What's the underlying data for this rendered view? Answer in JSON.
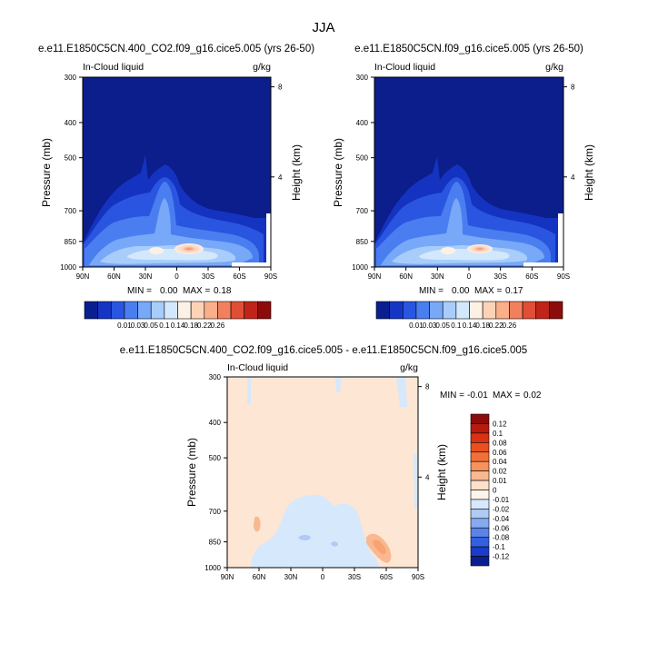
{
  "figure": {
    "title": "JJA"
  },
  "chart_data": [
    {
      "type": "heatmap",
      "title": "e.e11.E1850C5CN.400_CO2.f09_g16.cice5.005 (yrs 26-50)",
      "left_label": "In-Cloud liquid",
      "right_label": "g/kg",
      "xlabel": "",
      "ylabel": "Pressure (mb)",
      "y2label": "Height (km)",
      "x_ticks": [
        "90N",
        "60N",
        "30N",
        "0",
        "30S",
        "60S",
        "90S"
      ],
      "y_ticks": [
        300,
        400,
        500,
        700,
        850,
        1000
      ],
      "y2_ticks": [
        8,
        4
      ],
      "ylim": [
        1000,
        300
      ],
      "ylog": true,
      "stats": {
        "min_label": "MIN =",
        "min": "0.00",
        "max_label": "MAX =",
        "max": "0.18"
      },
      "colorbar": {
        "labels": [
          "0.01",
          "0.03",
          "0.05",
          "0.1",
          "0.14",
          "0.18",
          "0.22",
          "0.26"
        ],
        "colors": [
          "#0a1f8f",
          "#1535c4",
          "#2a55e0",
          "#4a7ef0",
          "#78a8f8",
          "#a8cdfb",
          "#d4e8fd",
          "#fdf0e4",
          "#fdd3b8",
          "#faae8a",
          "#f2805e",
          "#e04e36",
          "#c02418",
          "#8c0c0c"
        ]
      }
    },
    {
      "type": "heatmap",
      "title": "e.e11.E1850C5CN.f09_g16.cice5.005 (yrs 26-50)",
      "left_label": "In-Cloud liquid",
      "right_label": "g/kg",
      "xlabel": "",
      "ylabel": "Pressure (mb)",
      "y2label": "Height (km)",
      "x_ticks": [
        "90N",
        "60N",
        "30N",
        "0",
        "30S",
        "60S",
        "90S"
      ],
      "y_ticks": [
        300,
        400,
        500,
        700,
        850,
        1000
      ],
      "y2_ticks": [
        8,
        4
      ],
      "ylim": [
        1000,
        300
      ],
      "ylog": true,
      "stats": {
        "min_label": "MIN =",
        "min": "0.00",
        "max_label": "MAX =",
        "max": "0.17"
      },
      "colorbar": {
        "labels": [
          "0.01",
          "0.03",
          "0.05",
          "0.1",
          "0.14",
          "0.18",
          "0.22",
          "0.26"
        ],
        "colors": [
          "#0a1f8f",
          "#1535c4",
          "#2a55e0",
          "#4a7ef0",
          "#78a8f8",
          "#a8cdfb",
          "#d4e8fd",
          "#fdf0e4",
          "#fdd3b8",
          "#faae8a",
          "#f2805e",
          "#e04e36",
          "#c02418",
          "#8c0c0c"
        ]
      }
    },
    {
      "type": "heatmap",
      "title": "e.e11.E1850C5CN.400_CO2.f09_g16.cice5.005 - e.e11.E1850C5CN.f09_g16.cice5.005",
      "left_label": "In-Cloud liquid",
      "right_label": "g/kg",
      "xlabel": "",
      "ylabel": "Pressure (mb)",
      "y2label": "Height (km)",
      "x_ticks": [
        "90N",
        "60N",
        "30N",
        "0",
        "30S",
        "60S",
        "90S"
      ],
      "y_ticks": [
        300,
        400,
        500,
        700,
        850,
        1000
      ],
      "y2_ticks": [
        8,
        4
      ],
      "ylim": [
        1000,
        300
      ],
      "ylog": true,
      "stats": {
        "min_label": "MIN =",
        "min": "-0.01",
        "max_label": "MAX =",
        "max": "0.02"
      },
      "colorbar": {
        "orientation": "vertical",
        "labels": [
          "0.12",
          "0.1",
          "0.08",
          "0.06",
          "0.04",
          "0.02",
          "0.01",
          "0",
          "-0.01",
          "-0.02",
          "-0.04",
          "-0.06",
          "-0.08",
          "-0.1",
          "-0.12"
        ],
        "colors": [
          "#8c0c0c",
          "#b81a10",
          "#d83212",
          "#ea5020",
          "#f27038",
          "#f6925a",
          "#f9b890",
          "#fde0c8",
          "#fdf5ec",
          "#d6e8fb",
          "#aecbf5",
          "#86aaf0",
          "#5a84ea",
          "#3460e0",
          "#1a3cc8",
          "#0a1f8f"
        ]
      }
    }
  ]
}
